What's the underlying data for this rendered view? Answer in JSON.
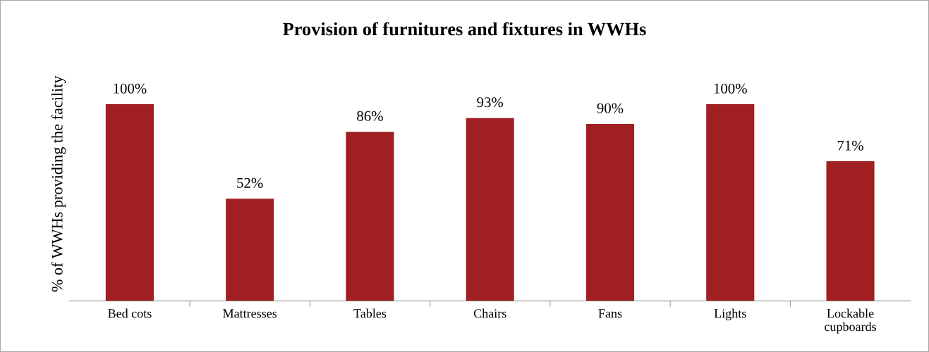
{
  "chart_data": {
    "type": "bar",
    "title": "Provision of furnitures and fixtures in WWHs",
    "ylabel": "% of WWHs providing the facility",
    "categories": [
      "Bed cots",
      "Mattresses",
      "Tables",
      "Chairs",
      "Fans",
      "Lights",
      "Lockable\ncupboards"
    ],
    "values": [
      100,
      52,
      86,
      93,
      90,
      100,
      71
    ],
    "value_labels": [
      "100%",
      "52%",
      "86%",
      "93%",
      "90%",
      "100%",
      "71%"
    ],
    "color": "#a01f20",
    "tick_labels": "x"
  }
}
